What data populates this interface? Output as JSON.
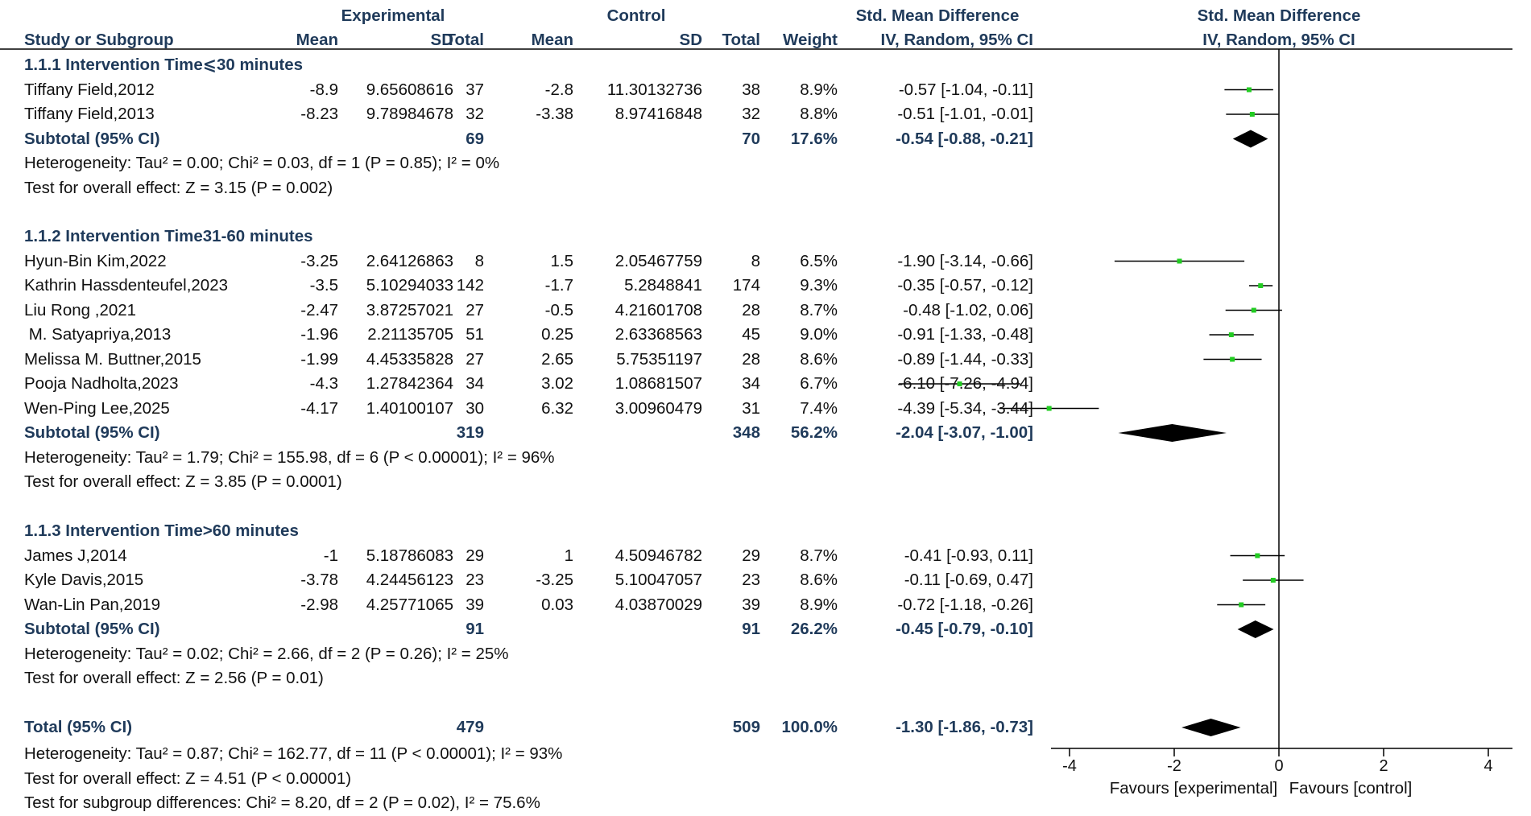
{
  "headers": {
    "group_experimental": "Experimental",
    "group_control": "Control",
    "group_smd": "Std. Mean Difference",
    "group_plot": "Std. Mean Difference",
    "study": "Study or Subgroup",
    "mean_e": "Mean",
    "sd_e": "SD",
    "total_e": "Total",
    "mean_c": "Mean",
    "sd_c": "SD",
    "total_c": "Total",
    "weight": "Weight",
    "ci": "IV, Random, 95% CI",
    "plot_ci": "IV, Random, 95% CI"
  },
  "subgroups": [
    {
      "title": "1.1.1 Intervention Time⩽30 minutes",
      "studies": [
        {
          "name": "Tiffany Field,2012",
          "mean_e": "-8.9",
          "sd_e": "9.65608616",
          "n_e": "37",
          "mean_c": "-2.8",
          "sd_c": "11.30132736",
          "n_c": "38",
          "weight": "8.9%",
          "ci_text": "-0.57 [-1.04, -0.11]"
        },
        {
          "name": "Tiffany Field,2013",
          "mean_e": "-8.23",
          "sd_e": "9.78984678",
          "n_e": "32",
          "mean_c": "-3.38",
          "sd_c": "8.97416848",
          "n_c": "32",
          "weight": "8.8%",
          "ci_text": "-0.51 [-1.01, -0.01]"
        }
      ],
      "subtotal": {
        "label": "Subtotal (95% CI)",
        "n_e": "69",
        "n_c": "70",
        "weight": "17.6%",
        "ci_text": "-0.54 [-0.88, -0.21]"
      },
      "heterogeneity": "Heterogeneity: Tau² = 0.00; Chi² = 0.03, df = 1 (P = 0.85); I² = 0%",
      "overall": "Test for overall effect: Z = 3.15 (P = 0.002)"
    },
    {
      "title": "1.1.2 Intervention Time31-60 minutes",
      "studies": [
        {
          "name": "Hyun-Bin Kim,2022",
          "mean_e": "-3.25",
          "sd_e": "2.64126863",
          "n_e": "8",
          "mean_c": "1.5",
          "sd_c": "2.05467759",
          "n_c": "8",
          "weight": "6.5%",
          "ci_text": "-1.90 [-3.14, -0.66]"
        },
        {
          "name": "Kathrin Hassdenteufel,2023",
          "mean_e": "-3.5",
          "sd_e": "5.10294033",
          "n_e": "142",
          "mean_c": "-1.7",
          "sd_c": "5.2848841",
          "n_c": "174",
          "weight": "9.3%",
          "ci_text": "-0.35 [-0.57, -0.12]"
        },
        {
          "name": "Liu Rong ,2021",
          "mean_e": "-2.47",
          "sd_e": "3.87257021",
          "n_e": "27",
          "mean_c": "-0.5",
          "sd_c": "4.21601708",
          "n_c": "28",
          "weight": "8.7%",
          "ci_text": "-0.48 [-1.02, 0.06]"
        },
        {
          "name": " M. Satyapriya,2013",
          "mean_e": "-1.96",
          "sd_e": "2.21135705",
          "n_e": "51",
          "mean_c": "0.25",
          "sd_c": "2.63368563",
          "n_c": "45",
          "weight": "9.0%",
          "ci_text": "-0.91 [-1.33, -0.48]"
        },
        {
          "name": "Melissa M. Buttner,2015",
          "mean_e": "-1.99",
          "sd_e": "4.45335828",
          "n_e": "27",
          "mean_c": "2.65",
          "sd_c": "5.75351197",
          "n_c": "28",
          "weight": "8.6%",
          "ci_text": "-0.89 [-1.44, -0.33]"
        },
        {
          "name": "Pooja Nadholta,2023",
          "mean_e": "-4.3",
          "sd_e": "1.27842364",
          "n_e": "34",
          "mean_c": "3.02",
          "sd_c": "1.08681507",
          "n_c": "34",
          "weight": "6.7%",
          "ci_text": "-6.10 [-7.26, -4.94]"
        },
        {
          "name": "Wen-Ping Lee,2025",
          "mean_e": "-4.17",
          "sd_e": "1.40100107",
          "n_e": "30",
          "mean_c": "6.32",
          "sd_c": "3.00960479",
          "n_c": "31",
          "weight": "7.4%",
          "ci_text": "-4.39 [-5.34, -3.44]"
        }
      ],
      "subtotal": {
        "label": "Subtotal (95% CI)",
        "n_e": "319",
        "n_c": "348",
        "weight": "56.2%",
        "ci_text": "-2.04 [-3.07, -1.00]"
      },
      "heterogeneity": "Heterogeneity: Tau² = 1.79; Chi² = 155.98, df = 6 (P < 0.00001); I² = 96%",
      "overall": "Test for overall effect: Z = 3.85 (P = 0.0001)"
    },
    {
      "title": "1.1.3 Intervention Time>60 minutes",
      "studies": [
        {
          "name": "James J,2014",
          "mean_e": "-1",
          "sd_e": "5.18786083",
          "n_e": "29",
          "mean_c": "1",
          "sd_c": "4.50946782",
          "n_c": "29",
          "weight": "8.7%",
          "ci_text": "-0.41 [-0.93, 0.11]"
        },
        {
          "name": "Kyle Davis,2015",
          "mean_e": "-3.78",
          "sd_e": "4.24456123",
          "n_e": "23",
          "mean_c": "-3.25",
          "sd_c": "5.10047057",
          "n_c": "23",
          "weight": "8.6%",
          "ci_text": "-0.11 [-0.69, 0.47]"
        },
        {
          "name": "Wan-Lin Pan,2019",
          "mean_e": "-2.98",
          "sd_e": "4.25771065",
          "n_e": "39",
          "mean_c": "0.03",
          "sd_c": "4.03870029",
          "n_c": "39",
          "weight": "8.9%",
          "ci_text": "-0.72 [-1.18, -0.26]"
        }
      ],
      "subtotal": {
        "label": "Subtotal (95% CI)",
        "n_e": "91",
        "n_c": "91",
        "weight": "26.2%",
        "ci_text": "-0.45 [-0.79, -0.10]"
      },
      "heterogeneity": "Heterogeneity: Tau² = 0.02; Chi² = 2.66, df = 2 (P = 0.26); I² = 25%",
      "overall": "Test for overall effect: Z = 2.56 (P = 0.01)"
    }
  ],
  "total": {
    "label": "Total (95% CI)",
    "n_e": "479",
    "n_c": "509",
    "weight": "100.0%",
    "ci_text": "-1.30 [-1.86, -0.73]"
  },
  "total_heterogeneity": "Heterogeneity: Tau² = 0.87; Chi² = 162.77, df = 11 (P < 0.00001); I² = 93%",
  "total_overall": "Test for overall effect: Z = 4.51 (P < 0.00001)",
  "subgroup_differences": "Test for subgroup differences: Chi² = 8.20, df = 2 (P = 0.02), I² = 75.6%",
  "favours_left": "Favours [experimental]",
  "favours_right": "Favours [control]",
  "colors": {
    "header_text": "#1f3a5a",
    "point": "#22cc22",
    "diamond": "#000000",
    "line": "#000000"
  },
  "chart_data": {
    "type": "forest",
    "xlim": [
      -8,
      4
    ],
    "xticks": [
      -4,
      -2,
      0,
      2,
      4
    ],
    "studies": [
      {
        "name": "Tiffany Field,2012",
        "smd": -0.57,
        "lo": -1.04,
        "hi": -0.11
      },
      {
        "name": "Tiffany Field,2013",
        "smd": -0.51,
        "lo": -1.01,
        "hi": -0.01
      },
      {
        "name": "Hyun-Bin Kim,2022",
        "smd": -1.9,
        "lo": -3.14,
        "hi": -0.66
      },
      {
        "name": "Kathrin Hassdenteufel,2023",
        "smd": -0.35,
        "lo": -0.57,
        "hi": -0.12
      },
      {
        "name": "Liu Rong ,2021",
        "smd": -0.48,
        "lo": -1.02,
        "hi": 0.06
      },
      {
        "name": " M. Satyapriya,2013",
        "smd": -0.91,
        "lo": -1.33,
        "hi": -0.48
      },
      {
        "name": "Melissa M. Buttner,2015",
        "smd": -0.89,
        "lo": -1.44,
        "hi": -0.33
      },
      {
        "name": "Pooja Nadholta,2023",
        "smd": -6.1,
        "lo": -7.26,
        "hi": -4.94
      },
      {
        "name": "Wen-Ping Lee,2025",
        "smd": -4.39,
        "lo": -5.34,
        "hi": -3.44
      },
      {
        "name": "James J,2014",
        "smd": -0.41,
        "lo": -0.93,
        "hi": 0.11
      },
      {
        "name": "Kyle Davis,2015",
        "smd": -0.11,
        "lo": -0.69,
        "hi": 0.47
      },
      {
        "name": "Wan-Lin Pan,2019",
        "smd": -0.72,
        "lo": -1.18,
        "hi": -0.26
      }
    ],
    "summaries": [
      {
        "name": "Subtotal 1.1.1",
        "smd": -0.54,
        "lo": -0.88,
        "hi": -0.21
      },
      {
        "name": "Subtotal 1.1.2",
        "smd": -2.04,
        "lo": -3.07,
        "hi": -1.0
      },
      {
        "name": "Subtotal 1.1.3",
        "smd": -0.45,
        "lo": -0.79,
        "hi": -0.1
      },
      {
        "name": "Total",
        "smd": -1.3,
        "lo": -1.86,
        "hi": -0.73
      }
    ]
  }
}
